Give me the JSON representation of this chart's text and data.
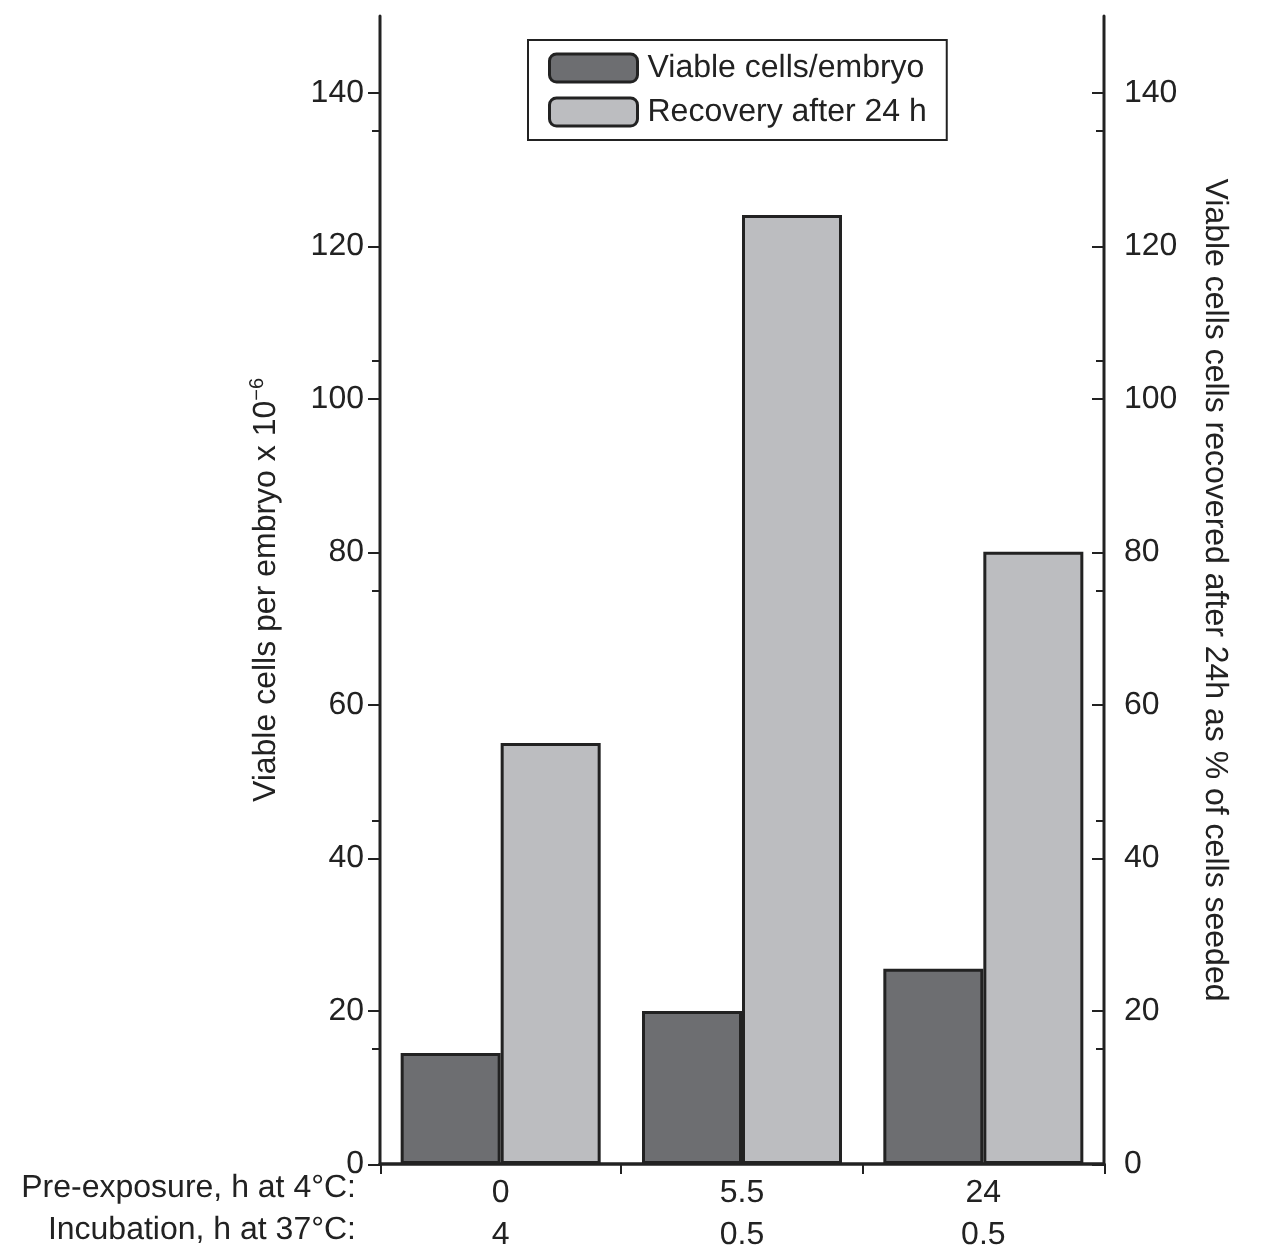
{
  "chart_data": {
    "type": "bar",
    "categories": [
      "0\n4",
      "5.5\n0.5",
      "24\n0.5"
    ],
    "series": [
      {
        "name": "Viable cells/embryo",
        "color": "#6d6e71",
        "values": [
          14.5,
          20,
          25.5
        ]
      },
      {
        "name": "Recovery after 24 h",
        "color": "#bcbdc0",
        "values": [
          55,
          124,
          80
        ]
      }
    ],
    "ylabel": "Viable cells per embryo x 10$^{−6}$",
    "y2label": "Viable cells cells recovered after 24h as % of cells seeded",
    "ylim": [
      0,
      150
    ],
    "yticks": [
      0,
      20,
      40,
      60,
      80,
      100,
      120,
      140
    ],
    "y2lim": [
      0,
      150
    ],
    "y2ticks": [
      0,
      20,
      40,
      60,
      80,
      100,
      120,
      140
    ],
    "annotations": [
      "Pre-exposure, h at 4°C:",
      "Incubation, h at 37°C:"
    ],
    "legend": "top",
    "grid": false
  }
}
